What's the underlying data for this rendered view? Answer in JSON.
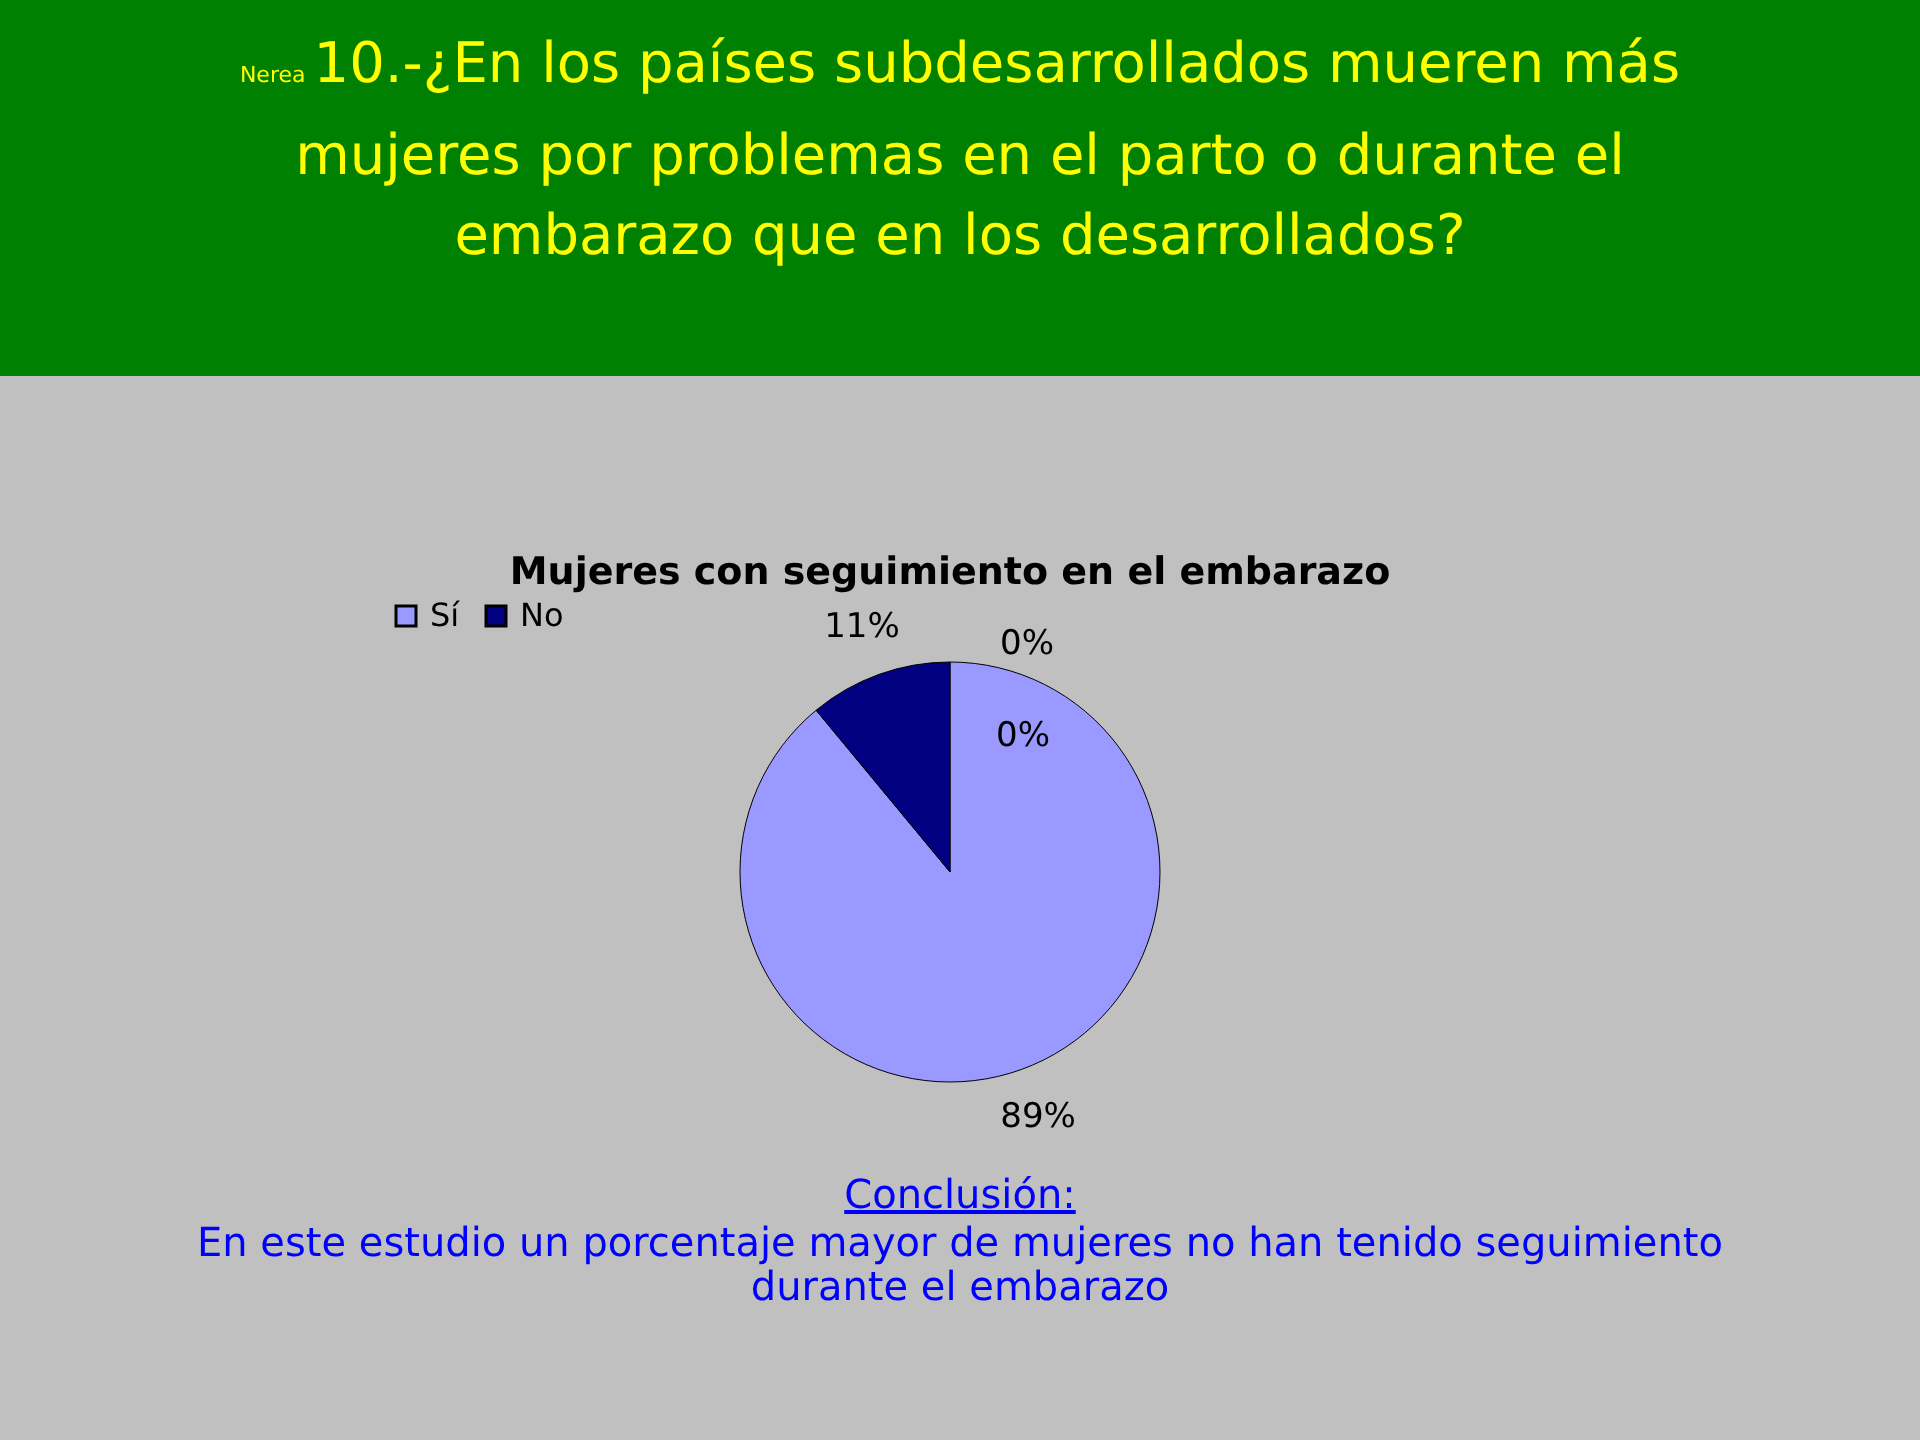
{
  "chart_data": {
    "type": "pie",
    "title": "Mujeres  con seguimiento en el embarazo",
    "categories": [
      "Sí",
      "No"
    ],
    "values": [
      89,
      11
    ],
    "colors": [
      "#9999ff",
      "#000080"
    ],
    "value_labels": [
      "89%",
      "11%"
    ],
    "legend": "top",
    "annotations": [
      "Nerea",
      "10.-¿En los países subdesarrollados mueren más mujeres por problemas en el parto o durante el embarazo que en los desarrollados?",
      "0%",
      "0%",
      "Conclusión:",
      "En este estudio un porcentaje mayor de mujeres no han tenido seguimiento durante el embarazo"
    ]
  }
}
